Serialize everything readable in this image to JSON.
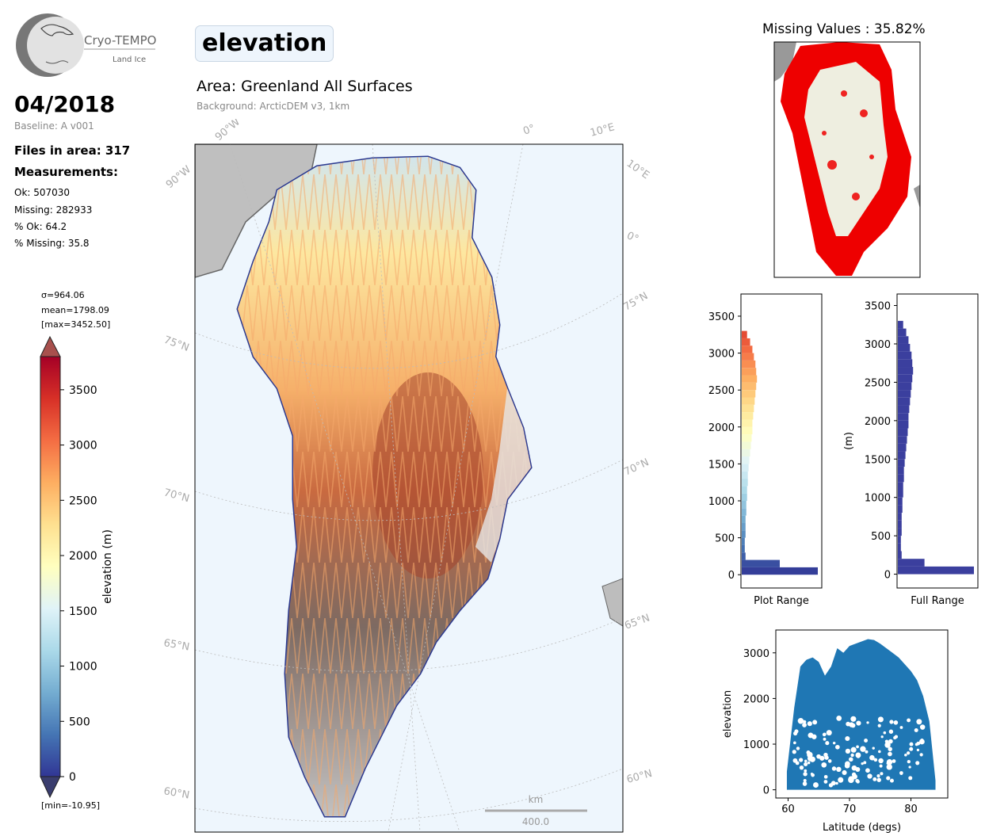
{
  "header": {
    "variable": "elevation",
    "area_title": "Area: Greenland All Surfaces",
    "background_label": "Background: ArcticDEM v3, 1km"
  },
  "logo": {
    "name": "Cryo-TEMPO",
    "subtitle": "Land Ice"
  },
  "summary": {
    "date": "04/2018",
    "baseline": "Baseline: A v001",
    "files": "Files in area: 317",
    "measurements_heading": "Measurements:",
    "ok": "Ok: 507030",
    "missing": "Missing: 282933",
    "pct_ok": "% Ok: 64.2",
    "pct_missing": "% Missing: 35.8"
  },
  "colorbar": {
    "sigma": "σ=964.06",
    "mean": "mean=1798.09",
    "max": "[max=3452.50]",
    "min": "[min=-10.95]",
    "label": "elevation (m)",
    "ticks": [
      0,
      500,
      1000,
      1500,
      2000,
      2500,
      3000,
      3500
    ],
    "range": [
      0,
      3800
    ],
    "colors": [
      "#313695",
      "#4575b4",
      "#74add1",
      "#abd9e9",
      "#e0f3f8",
      "#ffffbf",
      "#fee090",
      "#fdae61",
      "#f46d43",
      "#d73027",
      "#a50026"
    ]
  },
  "map": {
    "graticule_labels": [
      "90°W",
      "90°W",
      "0°",
      "10°E",
      "10°E",
      "0°",
      "75°N",
      "75°N",
      "70°N",
      "70°N",
      "65°N",
      "65°N",
      "60°N",
      "60°N"
    ],
    "scale_unit": "km",
    "scale_value": "400.0",
    "ocean_color": "#eef6fd"
  },
  "missing_map": {
    "title": "Missing Values : 35.82%",
    "missing_color": "#ee0000",
    "land_color": "#eeeee0"
  },
  "chart_data": [
    {
      "type": "bar",
      "orientation": "horizontal",
      "title": "",
      "xlabel": "Plot Range",
      "ylabel": "",
      "ylim": [
        -180,
        3800
      ],
      "yticks": [
        0,
        500,
        1000,
        1500,
        2000,
        2500,
        3000,
        3500
      ],
      "bins": [
        0,
        100,
        200,
        300,
        400,
        500,
        600,
        700,
        800,
        900,
        1000,
        1100,
        1200,
        1300,
        1400,
        1500,
        1600,
        1700,
        1800,
        1900,
        2000,
        2100,
        2200,
        2300,
        2400,
        2500,
        2600,
        2700,
        2800,
        2900,
        3000,
        3100,
        3200
      ],
      "relative_counts": [
        1.0,
        0.5,
        0.05,
        0.04,
        0.04,
        0.05,
        0.05,
        0.05,
        0.06,
        0.06,
        0.07,
        0.07,
        0.08,
        0.08,
        0.09,
        0.1,
        0.11,
        0.12,
        0.13,
        0.14,
        0.14,
        0.15,
        0.16,
        0.17,
        0.18,
        0.19,
        0.2,
        0.19,
        0.18,
        0.16,
        0.14,
        0.11,
        0.07
      ]
    },
    {
      "type": "bar",
      "orientation": "horizontal",
      "title": "",
      "xlabel": "Full Range",
      "ylabel": "(m)",
      "ylim": [
        -180,
        3650
      ],
      "yticks": [
        0,
        500,
        1000,
        1500,
        2000,
        2500,
        3000,
        3500
      ],
      "bins": [
        0,
        100,
        200,
        300,
        400,
        500,
        600,
        700,
        800,
        900,
        1000,
        1100,
        1200,
        1300,
        1400,
        1500,
        1600,
        1700,
        1800,
        1900,
        2000,
        2100,
        2200,
        2300,
        2400,
        2500,
        2600,
        2700,
        2800,
        2900,
        3000,
        3100,
        3200
      ],
      "relative_counts": [
        1.0,
        0.35,
        0.05,
        0.04,
        0.04,
        0.05,
        0.05,
        0.05,
        0.06,
        0.06,
        0.07,
        0.07,
        0.08,
        0.08,
        0.09,
        0.1,
        0.11,
        0.12,
        0.13,
        0.14,
        0.14,
        0.15,
        0.16,
        0.17,
        0.18,
        0.19,
        0.2,
        0.19,
        0.18,
        0.16,
        0.14,
        0.11,
        0.07
      ]
    },
    {
      "type": "scatter",
      "title": "",
      "xlabel": "Latitude (degs)",
      "ylabel": "elevation",
      "xlim": [
        58,
        86
      ],
      "ylim": [
        -180,
        3500
      ],
      "xticks": [
        60,
        70,
        80
      ],
      "yticks": [
        0,
        1000,
        2000,
        3000
      ],
      "color": "#1f77b4",
      "envelope_x": [
        59.8,
        61,
        62,
        63,
        64,
        65,
        66,
        67,
        68,
        69,
        70,
        71,
        72,
        73,
        74,
        75,
        76,
        77,
        78,
        79,
        80,
        81,
        82,
        83,
        84
      ],
      "envelope_y": [
        400,
        1800,
        2700,
        2850,
        2900,
        2800,
        2500,
        2700,
        3100,
        3000,
        3150,
        3200,
        3250,
        3300,
        3280,
        3200,
        3100,
        3000,
        2900,
        2750,
        2600,
        2400,
        2050,
        1500,
        200
      ]
    }
  ]
}
